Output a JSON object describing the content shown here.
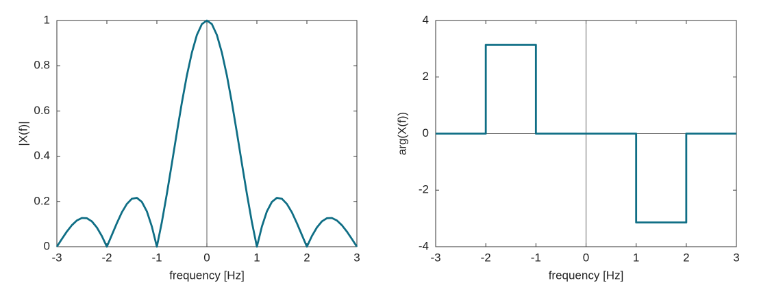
{
  "chart_data": [
    {
      "type": "line",
      "xlabel": "frequency [Hz]",
      "ylabel": "|X(f)|",
      "x": [
        -3,
        -2.9,
        -2.8,
        -2.7,
        -2.6,
        -2.5,
        -2.4,
        -2.3,
        -2.2,
        -2.1,
        -2,
        -1.9,
        -1.8,
        -1.7,
        -1.6,
        -1.5,
        -1.4,
        -1.3,
        -1.2,
        -1.1,
        -1,
        -0.9,
        -0.8,
        -0.7,
        -0.6,
        -0.5,
        -0.4,
        -0.3,
        -0.2,
        -0.1,
        0,
        0.1,
        0.2,
        0.3,
        0.4,
        0.5,
        0.6,
        0.7,
        0.8,
        0.9,
        1,
        1.1,
        1.2,
        1.3,
        1.4,
        1.5,
        1.6,
        1.7,
        1.8,
        1.9,
        2,
        2.1,
        2.2,
        2.3,
        2.4,
        2.5,
        2.6,
        2.7,
        2.8,
        2.9,
        3
      ],
      "series": [
        {
          "color": "#0f6e85",
          "values": [
            0,
            0.034,
            0.067,
            0.095,
            0.116,
            0.127,
            0.126,
            0.112,
            0.085,
            0.047,
            0,
            0.052,
            0.104,
            0.152,
            0.189,
            0.212,
            0.216,
            0.198,
            0.156,
            0.089,
            0,
            0.109,
            0.234,
            0.368,
            0.505,
            0.637,
            0.757,
            0.858,
            0.936,
            0.984,
            1,
            0.984,
            0.936,
            0.858,
            0.757,
            0.637,
            0.505,
            0.368,
            0.234,
            0.109,
            0,
            0.089,
            0.156,
            0.198,
            0.216,
            0.212,
            0.189,
            0.152,
            0.104,
            0.052,
            0,
            0.047,
            0.085,
            0.112,
            0.126,
            0.127,
            0.116,
            0.095,
            0.067,
            0.034,
            0
          ]
        }
      ],
      "xlim": [
        -3,
        3
      ],
      "xticks": [
        -3,
        -2,
        -1,
        0,
        1,
        2,
        3
      ],
      "ylim": [
        0,
        1
      ],
      "yticks": [
        0,
        0.2,
        0.4,
        0.6,
        0.8,
        1
      ]
    },
    {
      "type": "line",
      "xlabel": "frequency [Hz]",
      "ylabel": "arg(X(f))",
      "x": [
        -3,
        -2,
        -2,
        -1,
        -1,
        0,
        1,
        1,
        2,
        2,
        3
      ],
      "series": [
        {
          "color": "#0f6e85",
          "values": [
            0,
            0,
            3.1416,
            3.1416,
            0,
            0,
            0,
            -3.1416,
            -3.1416,
            0,
            0
          ]
        }
      ],
      "xlim": [
        -3,
        3
      ],
      "xticks": [
        -3,
        -2,
        -1,
        0,
        1,
        2,
        3
      ],
      "ylim": [
        -4,
        4
      ],
      "yticks": [
        -4,
        -2,
        0,
        2,
        4
      ]
    }
  ]
}
